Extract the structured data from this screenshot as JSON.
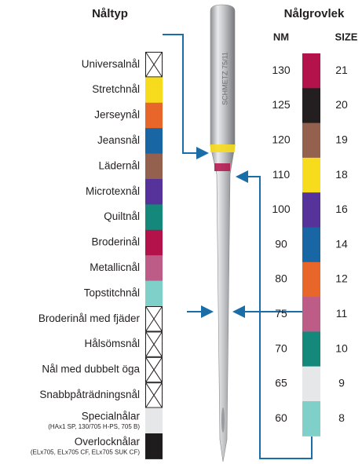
{
  "left_title": "Nåltyp",
  "right_title": "Nålgrovlek",
  "nm_header": "NM",
  "size_header": "SIZE",
  "needle_label": "SCHMETZ 75/11",
  "needle_types": [
    {
      "label": "Universalnål",
      "color": null
    },
    {
      "label": "Stretchnål",
      "color": "#f7dc1e"
    },
    {
      "label": "Jerseynål",
      "color": "#e8662a"
    },
    {
      "label": "Jeansnål",
      "color": "#1866a3"
    },
    {
      "label": "Lädernål",
      "color": "#93614e"
    },
    {
      "label": "Microtexnål",
      "color": "#55339a"
    },
    {
      "label": "Quiltnål",
      "color": "#14887a"
    },
    {
      "label": "Broderinål",
      "color": "#b3124a"
    },
    {
      "label": "Metallicnål",
      "color": "#bd5d87"
    },
    {
      "label": "Topstitchnål",
      "color": "#7ed0c9"
    },
    {
      "label": "Broderinål med fjäder",
      "color": null
    },
    {
      "label": "Hålsömsnål",
      "color": null
    },
    {
      "label": "Nål med dubbelt öga",
      "color": null
    },
    {
      "label": "Snabbpåträdningsnål",
      "color": null
    },
    {
      "label": "Specialnålar",
      "sublabel": "(HAx1 SP, 130/705 H-PS, 705 B)",
      "color": "#e6e7e8"
    },
    {
      "label": "Overlocknålar",
      "sublabel": "(ELx705, ELx705 CF, ELx705 SUK CF)",
      "color": "#1f1c1d"
    }
  ],
  "sizes": [
    {
      "nm": 130,
      "size": 21,
      "color": "#b3124a"
    },
    {
      "nm": 125,
      "size": 20,
      "color": "#231f20"
    },
    {
      "nm": 120,
      "size": 19,
      "color": "#93614e"
    },
    {
      "nm": 110,
      "size": 18,
      "color": "#f7dc1e"
    },
    {
      "nm": 100,
      "size": 16,
      "color": "#55339a"
    },
    {
      "nm": 90,
      "size": 14,
      "color": "#1866a3"
    },
    {
      "nm": 80,
      "size": 12,
      "color": "#e8662a"
    },
    {
      "nm": 75,
      "size": 11,
      "color": "#bd5d87"
    },
    {
      "nm": 70,
      "size": 10,
      "color": "#14887a"
    },
    {
      "nm": 65,
      "size": 9,
      "color": "#e6e7e8"
    },
    {
      "nm": 60,
      "size": 8,
      "color": "#7ed0c9"
    }
  ]
}
